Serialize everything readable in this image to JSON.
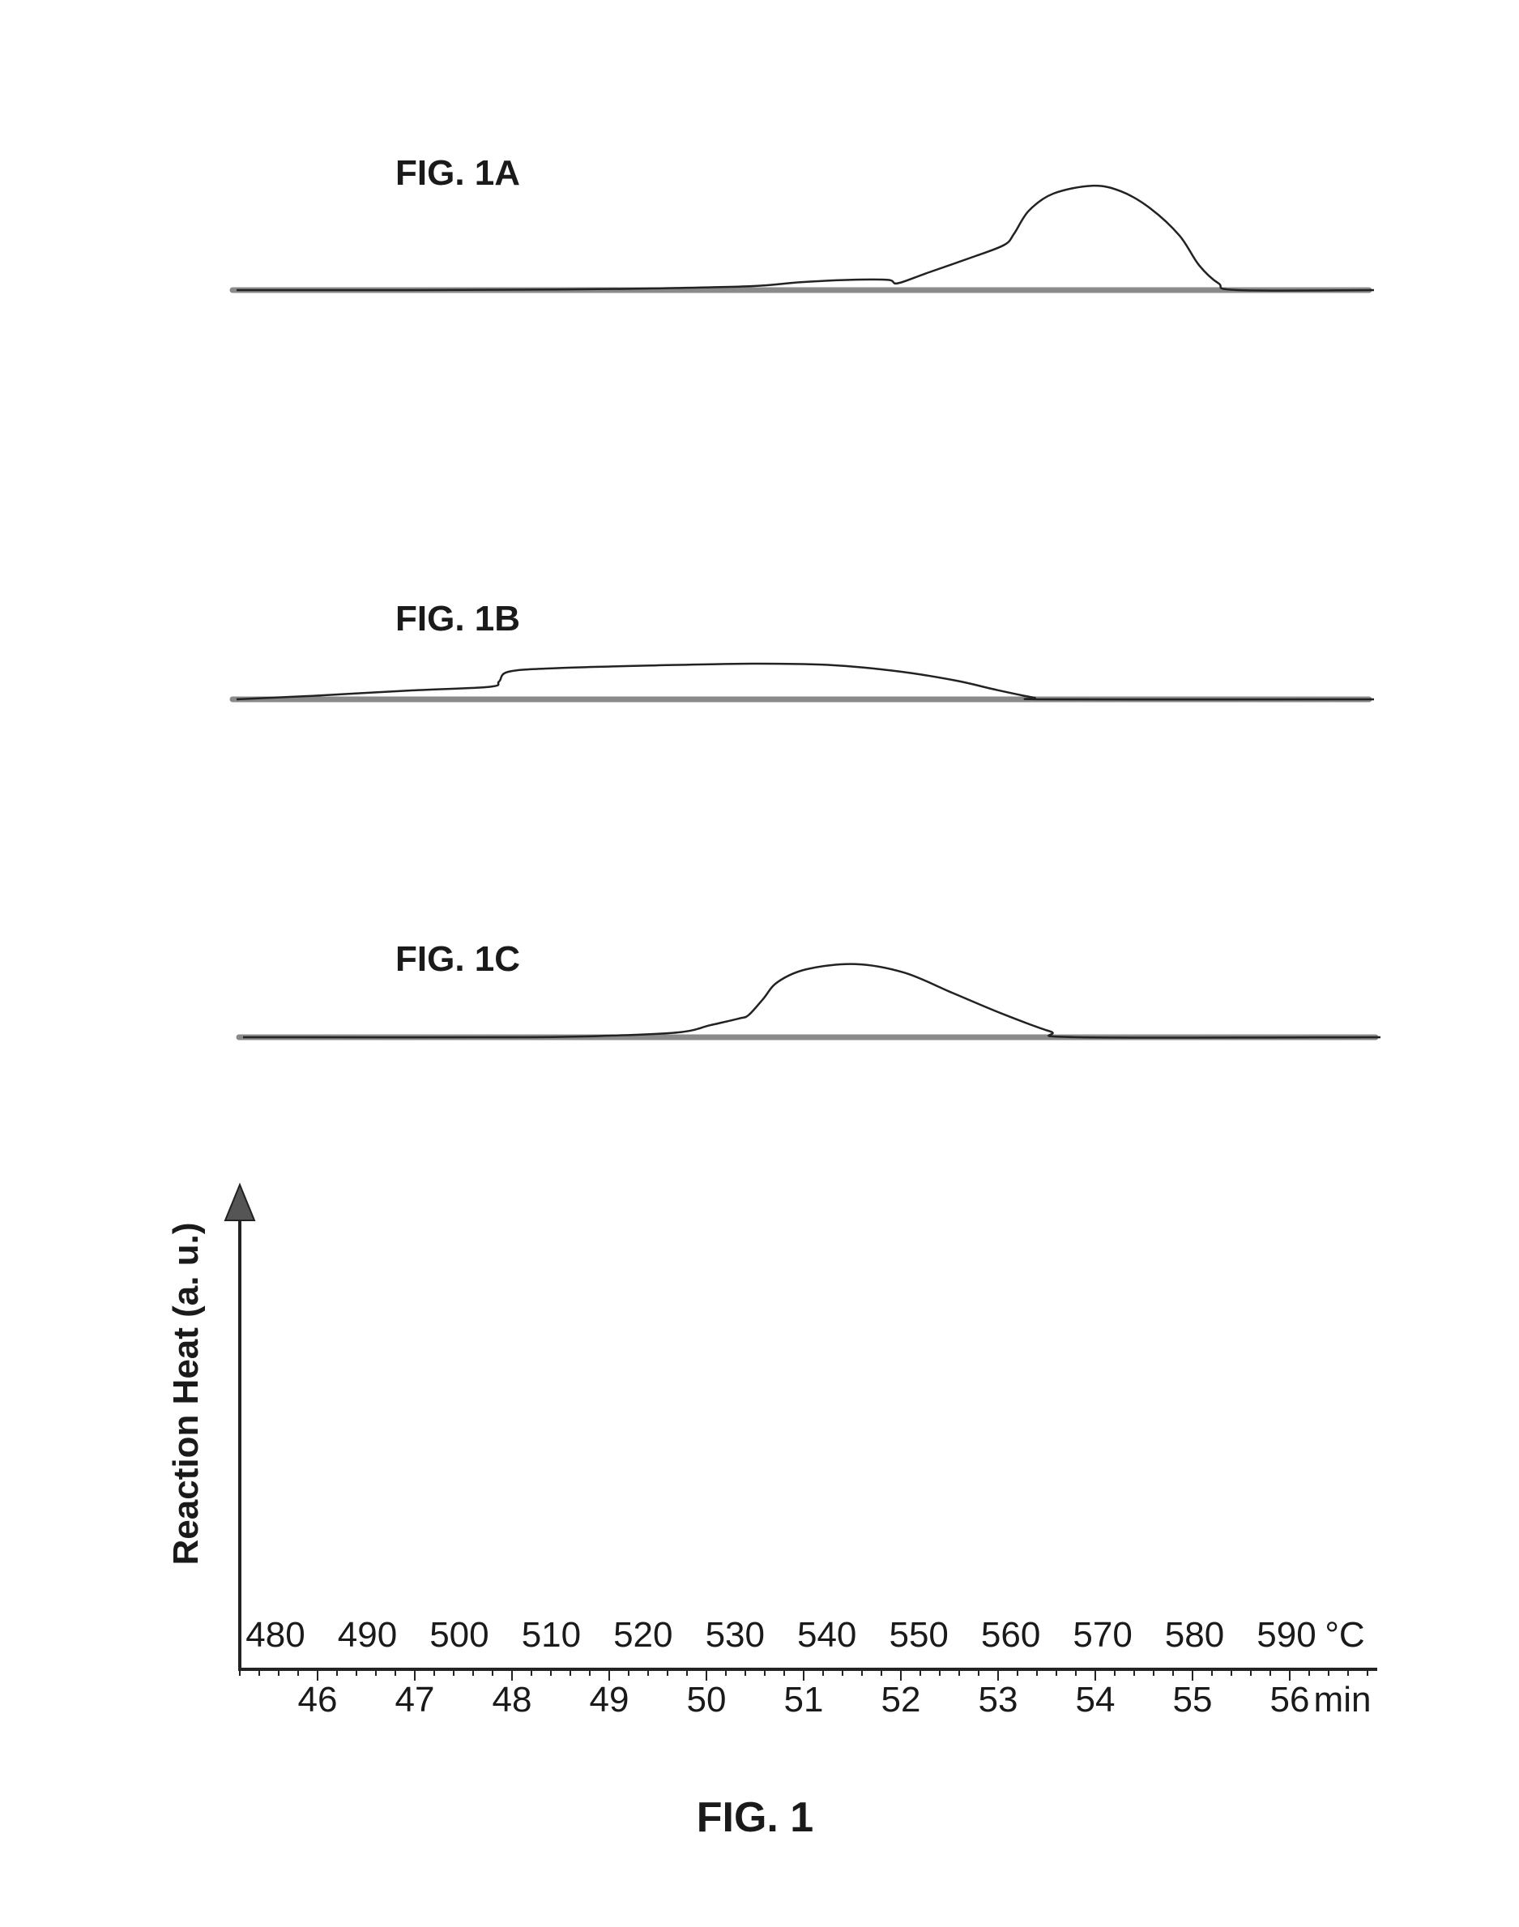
{
  "figure_label": "FIG. 1",
  "chart_data": {
    "type": "line",
    "xlabel": "",
    "ylabel": "Reaction Heat (a. u.)",
    "x_axis_time": {
      "unit_label": "min",
      "tick_labels": [
        "46",
        "47",
        "48",
        "49",
        "50",
        "51",
        "52",
        "53",
        "54",
        "55",
        "56"
      ],
      "range": [
        45.2,
        56.9
      ]
    },
    "x_axis_temperature": {
      "unit_label": "°C",
      "tick_labels": [
        "480",
        "490",
        "500",
        "510",
        "520",
        "530",
        "540",
        "550",
        "560",
        "570",
        "580",
        "590"
      ],
      "range": [
        480,
        594
      ]
    },
    "y_axis": {
      "direction": "up",
      "numeric_ticks": false
    },
    "grid": false,
    "panels": [
      {
        "label": "FIG. 1A",
        "series": [
          {
            "points": [
              [
                45.2,
                0
              ],
              [
                47.0,
                0
              ],
              [
                48.5,
                0.005
              ],
              [
                49.5,
                0.015
              ],
              [
                50.5,
                0.035
              ],
              [
                51.0,
                0.07
              ],
              [
                51.5,
                0.09
              ],
              [
                51.9,
                0.09
              ],
              [
                52.0,
                0.06
              ],
              [
                52.3,
                0.15
              ],
              [
                52.8,
                0.3
              ],
              [
                53.1,
                0.4
              ],
              [
                53.2,
                0.5
              ],
              [
                53.35,
                0.7
              ],
              [
                53.6,
                0.85
              ],
              [
                54.0,
                0.92
              ],
              [
                54.3,
                0.87
              ],
              [
                54.6,
                0.72
              ],
              [
                54.9,
                0.48
              ],
              [
                55.1,
                0.22
              ],
              [
                55.3,
                0.06
              ],
              [
                55.5,
                0
              ],
              [
                56.9,
                0
              ]
            ]
          }
        ]
      },
      {
        "label": "FIG. 1B",
        "series": [
          {
            "points": [
              [
                45.2,
                0
              ],
              [
                46.0,
                0.08
              ],
              [
                47.0,
                0.2
              ],
              [
                47.8,
                0.28
              ],
              [
                47.9,
                0.4
              ],
              [
                48.0,
                0.62
              ],
              [
                48.5,
                0.7
              ],
              [
                49.5,
                0.76
              ],
              [
                50.5,
                0.8
              ],
              [
                51.3,
                0.77
              ],
              [
                52.0,
                0.63
              ],
              [
                52.6,
                0.42
              ],
              [
                53.0,
                0.22
              ],
              [
                53.4,
                0.04
              ],
              [
                53.6,
                0
              ],
              [
                56.9,
                0
              ]
            ]
          }
        ]
      },
      {
        "label": "FIG. 1C",
        "series": [
          {
            "points": [
              [
                45.2,
                0
              ],
              [
                48.0,
                0
              ],
              [
                49.0,
                0.02
              ],
              [
                49.7,
                0.06
              ],
              [
                50.0,
                0.14
              ],
              [
                50.3,
                0.22
              ],
              [
                50.4,
                0.26
              ],
              [
                50.55,
                0.45
              ],
              [
                50.7,
                0.65
              ],
              [
                51.0,
                0.8
              ],
              [
                51.5,
                0.86
              ],
              [
                52.0,
                0.76
              ],
              [
                52.5,
                0.52
              ],
              [
                53.0,
                0.28
              ],
              [
                53.5,
                0.07
              ],
              [
                53.8,
                0
              ],
              [
                56.9,
                0
              ]
            ]
          }
        ]
      }
    ]
  }
}
